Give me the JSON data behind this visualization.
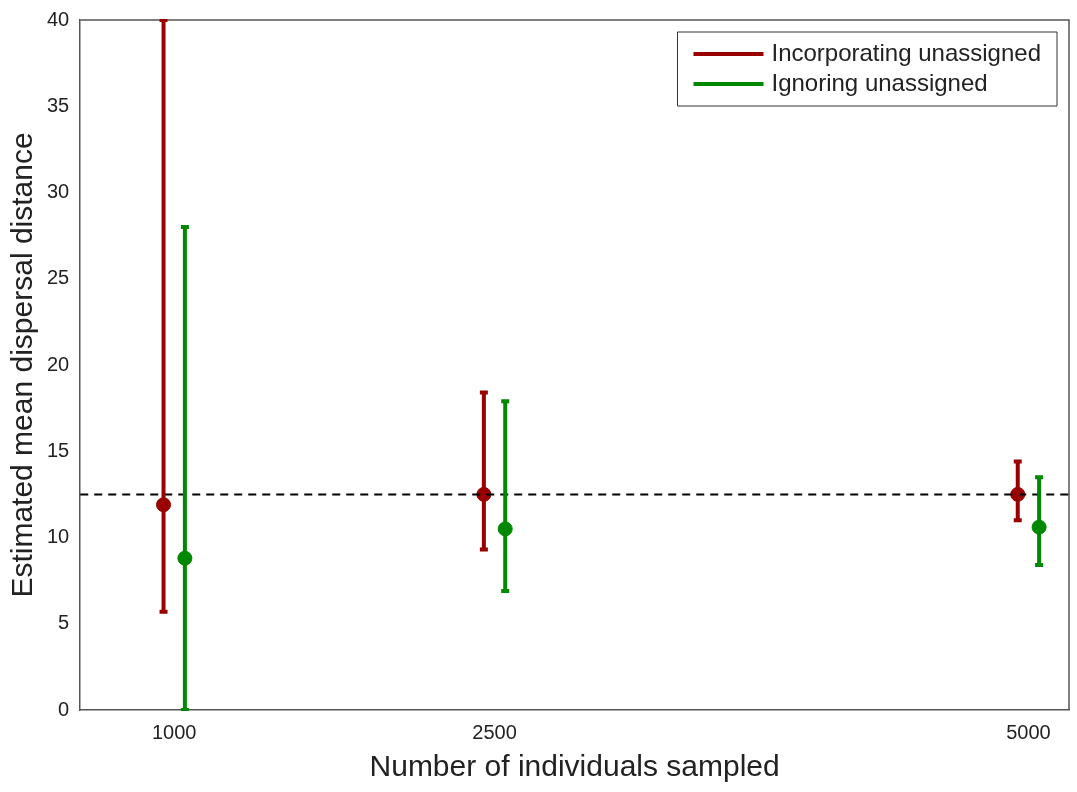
{
  "chart_data": {
    "type": "scatter",
    "xlabel": "Number of individuals sampled",
    "ylabel": "Estimated mean dispersal distance",
    "xlim": [
      560,
      5190
    ],
    "xticks": [
      1000,
      2500,
      5000
    ],
    "ylim": [
      0,
      40
    ],
    "yticks": [
      0,
      5,
      10,
      15,
      20,
      25,
      30,
      35,
      40
    ],
    "grid": false,
    "legend": "top right",
    "marker": "circle",
    "series": [
      {
        "name": "Incorporating unassigned",
        "color": "#990000",
        "x": [
          950,
          2450,
          4950
        ],
        "values": [
          11.9,
          12.5,
          12.5
        ],
        "errors": [
          [
            5.7,
            40
          ],
          [
            9.3,
            18.4
          ],
          [
            11,
            14.4
          ]
        ]
      },
      {
        "name": "Ignoring unassigned",
        "color": "#008800",
        "x": [
          1050,
          2550,
          5050
        ],
        "values": [
          8.8,
          10.5,
          10.6
        ],
        "errors": [
          [
            0,
            28
          ],
          [
            6.9,
            17.9
          ],
          [
            8.4,
            13.5
          ]
        ]
      }
    ],
    "ref_lines": [
      {
        "axis": "y",
        "value": 12.5,
        "color": "#000000",
        "line_style": "dashed"
      }
    ]
  }
}
